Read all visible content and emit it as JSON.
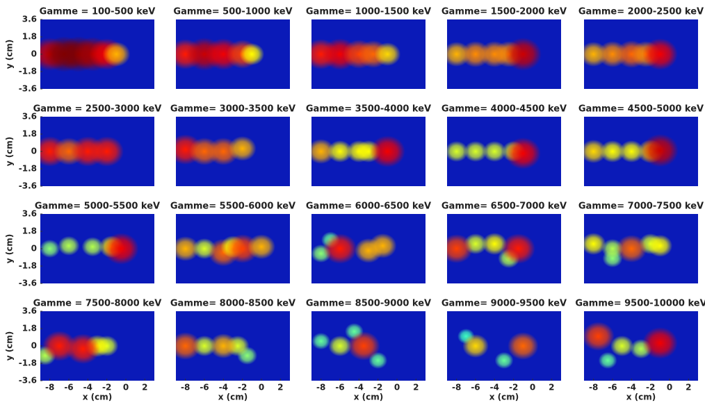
{
  "chart_data": [
    {
      "type": "heatmap",
      "title": "Gamme = 100-500 keV",
      "ylabel": "y (cm)",
      "xlim": [
        -9,
        3
      ],
      "ylim": [
        -3.6,
        3.6
      ],
      "yticks": [
        3.6,
        1.8,
        0,
        -1.8,
        -3.6
      ],
      "x": [
        -8,
        -6.5,
        -5,
        -3.5,
        -2,
        -1
      ],
      "y": [
        0,
        0,
        0,
        0,
        0,
        0
      ],
      "values": [
        0.9,
        1,
        1,
        0.95,
        0.85,
        0.6
      ]
    },
    {
      "type": "heatmap",
      "title": "Gamme= 500-1000 keV",
      "xlim": [
        -9,
        3
      ],
      "ylim": [
        -3.6,
        3.6
      ],
      "x": [
        -8,
        -6,
        -4,
        -2,
        -1
      ],
      "y": [
        0,
        0,
        0,
        0,
        0
      ],
      "values": [
        0.8,
        0.9,
        0.85,
        0.75,
        0.5
      ]
    },
    {
      "type": "heatmap",
      "title": "Gamme= 1000-1500 keV",
      "xlim": [
        -9,
        3
      ],
      "ylim": [
        -3.6,
        3.6
      ],
      "x": [
        -8,
        -6,
        -4,
        -2.5,
        -1
      ],
      "y": [
        0,
        0,
        0,
        0,
        0
      ],
      "values": [
        0.8,
        0.85,
        0.75,
        0.7,
        0.55
      ]
    },
    {
      "type": "heatmap",
      "title": "Gamme= 1500-2000 keV",
      "xlim": [
        -9,
        3
      ],
      "ylim": [
        -3.6,
        3.6
      ],
      "x": [
        -8,
        -6,
        -4,
        -2.5,
        -1
      ],
      "y": [
        0,
        0,
        0,
        0,
        0
      ],
      "values": [
        0.6,
        0.65,
        0.65,
        0.65,
        0.9
      ]
    },
    {
      "type": "heatmap",
      "title": "Gamme= 2000-2500 keV",
      "xlim": [
        -9,
        3
      ],
      "ylim": [
        -3.6,
        3.6
      ],
      "x": [
        -8,
        -6,
        -4,
        -2.5,
        -1
      ],
      "y": [
        0,
        0,
        0,
        0,
        0
      ],
      "values": [
        0.6,
        0.65,
        0.7,
        0.65,
        0.85
      ]
    },
    {
      "type": "heatmap",
      "title": "Gamme = 2500-3000 keV",
      "ylabel": "y (cm)",
      "xlim": [
        -9,
        3
      ],
      "ylim": [
        -3.6,
        3.6
      ],
      "yticks": [
        3.6,
        1.8,
        0,
        -1.8,
        -3.6
      ],
      "x": [
        -8,
        -6,
        -4,
        -2
      ],
      "y": [
        0,
        0,
        0,
        0
      ],
      "values": [
        0.8,
        0.7,
        0.8,
        0.8
      ]
    },
    {
      "type": "heatmap",
      "title": "Gamme= 3000-3500 keV",
      "xlim": [
        -9,
        3
      ],
      "ylim": [
        -3.6,
        3.6
      ],
      "x": [
        -8,
        -6,
        -4,
        -2
      ],
      "y": [
        0.2,
        0,
        0,
        0.3
      ],
      "values": [
        0.8,
        0.7,
        0.7,
        0.6
      ]
    },
    {
      "type": "heatmap",
      "title": "Gamme= 3500-4000 keV",
      "xlim": [
        -9,
        3
      ],
      "ylim": [
        -3.6,
        3.6
      ],
      "x": [
        -8,
        -6,
        -4,
        -3,
        -1
      ],
      "y": [
        0,
        0,
        0,
        0,
        0
      ],
      "values": [
        0.6,
        0.5,
        0.5,
        0.5,
        0.85
      ]
    },
    {
      "type": "heatmap",
      "title": "Gamme= 4000-4500 keV",
      "xlim": [
        -9,
        3
      ],
      "ylim": [
        -3.6,
        3.6
      ],
      "x": [
        -8,
        -6,
        -4,
        -2,
        -1
      ],
      "y": [
        0,
        0,
        0,
        0,
        -0.2
      ],
      "values": [
        0.45,
        0.45,
        0.45,
        0.45,
        0.85
      ]
    },
    {
      "type": "heatmap",
      "title": "Gamme= 4500-5000 keV",
      "xlim": [
        -9,
        3
      ],
      "ylim": [
        -3.6,
        3.6
      ],
      "x": [
        -8,
        -6,
        -4,
        -2,
        -1
      ],
      "y": [
        0,
        0,
        0,
        0,
        0.1
      ],
      "values": [
        0.55,
        0.5,
        0.5,
        0.55,
        0.9
      ]
    },
    {
      "type": "heatmap",
      "title": "Gamme= 5000-5500 keV",
      "ylabel": "y (cm)",
      "xlim": [
        -9,
        3
      ],
      "ylim": [
        -3.6,
        3.6
      ],
      "yticks": [
        3.6,
        1.8,
        0,
        -1.8,
        -3.6
      ],
      "x": [
        -8,
        -6,
        -3.5,
        -1.5,
        -0.5
      ],
      "y": [
        0,
        0.3,
        0.2,
        0.2,
        0
      ],
      "values": [
        0.35,
        0.4,
        0.4,
        0.5,
        0.85
      ]
    },
    {
      "type": "heatmap",
      "title": "Gamme= 5500-6000 keV",
      "xlim": [
        -9,
        3
      ],
      "ylim": [
        -3.6,
        3.6
      ],
      "x": [
        -8,
        -6,
        -4,
        -3,
        -2,
        0
      ],
      "y": [
        0,
        0,
        -0.4,
        0.2,
        0,
        0.2
      ],
      "values": [
        0.6,
        0.45,
        0.7,
        0.5,
        0.75,
        0.6
      ]
    },
    {
      "type": "heatmap",
      "title": "Gamme= 6000-6500 keV",
      "xlim": [
        -9,
        3
      ],
      "ylim": [
        -3.6,
        3.6
      ],
      "x": [
        -7,
        -8,
        -3,
        -1.5,
        -6
      ],
      "y": [
        0.9,
        -0.5,
        -0.2,
        0.3,
        0
      ],
      "values": [
        0.3,
        0.35,
        0.6,
        0.6,
        0.8
      ]
    },
    {
      "type": "heatmap",
      "title": "Gamme= 6500-7000 keV",
      "xlim": [
        -9,
        3
      ],
      "ylim": [
        -3.6,
        3.6
      ],
      "x": [
        -2.5,
        -6,
        -4,
        -8,
        -1.5
      ],
      "y": [
        -1,
        0.5,
        0.5,
        0,
        0
      ],
      "values": [
        0.4,
        0.45,
        0.5,
        0.75,
        0.8
      ]
    },
    {
      "type": "heatmap",
      "title": "Gamme= 7000-7500 keV",
      "xlim": [
        -9,
        3
      ],
      "ylim": [
        -3.6,
        3.6
      ],
      "x": [
        -6,
        -6,
        -2,
        -1,
        -8,
        -4
      ],
      "y": [
        -1,
        0,
        0.5,
        0.3,
        0.5,
        0
      ],
      "values": [
        0.35,
        0.4,
        0.45,
        0.5,
        0.5,
        0.7
      ]
    },
    {
      "type": "heatmap",
      "title": "Gamme = 7500-8000 keV",
      "ylabel": "y (cm)",
      "xlabel": "x (cm)",
      "xlim": [
        -9,
        3
      ],
      "ylim": [
        -3.6,
        3.6
      ],
      "yticks": [
        3.6,
        1.8,
        0,
        -1.8,
        -3.6
      ],
      "xticks": [
        -8,
        -6,
        -4,
        -2,
        0,
        2
      ],
      "x": [
        -8.5,
        -2,
        -3,
        -7,
        -4.5
      ],
      "y": [
        -1,
        0,
        0,
        0,
        -0.3
      ],
      "values": [
        0.4,
        0.45,
        0.5,
        0.8,
        0.8
      ]
    },
    {
      "type": "heatmap",
      "title": "Gamme= 8000-8500 keV",
      "xlabel": "x (cm)",
      "xlim": [
        -9,
        3
      ],
      "ylim": [
        -3.6,
        3.6
      ],
      "xticks": [
        -8,
        -6,
        -4,
        -2,
        0,
        2
      ],
      "x": [
        -1.5,
        -6,
        -2.5,
        -4,
        -8
      ],
      "y": [
        -1,
        0,
        0,
        0,
        0
      ],
      "values": [
        0.35,
        0.45,
        0.45,
        0.6,
        0.7
      ]
    },
    {
      "type": "heatmap",
      "title": "Gamme= 8500-9000 keV",
      "xlabel": "x (cm)",
      "xlim": [
        -9,
        3
      ],
      "ylim": [
        -3.6,
        3.6
      ],
      "xticks": [
        -8,
        -6,
        -4,
        -2,
        0,
        2
      ],
      "x": [
        -8,
        -4.5,
        -2,
        -6,
        -3.5
      ],
      "y": [
        0.5,
        1.5,
        -1.5,
        0,
        0
      ],
      "values": [
        0.3,
        0.3,
        0.3,
        0.45,
        0.75
      ]
    },
    {
      "type": "heatmap",
      "title": "Gamme= 9000-9500 keV",
      "xlabel": "x (cm)",
      "xlim": [
        -9,
        3
      ],
      "ylim": [
        -3.6,
        3.6
      ],
      "xticks": [
        -8,
        -6,
        -4,
        -2,
        0,
        2
      ],
      "x": [
        -7,
        -3,
        -6,
        -1
      ],
      "y": [
        1,
        -1.5,
        0,
        0
      ],
      "values": [
        0.25,
        0.3,
        0.55,
        0.7
      ]
    },
    {
      "type": "heatmap",
      "title": "Gamme= 9500-10000 keV",
      "xlabel": "x (cm)",
      "xlim": [
        -9,
        3
      ],
      "ylim": [
        -3.6,
        3.6
      ],
      "xticks": [
        -8,
        -6,
        -4,
        -2,
        0,
        2
      ],
      "x": [
        -6.5,
        -3,
        -5,
        -7.5,
        -1
      ],
      "y": [
        -1.5,
        -0.3,
        0,
        1,
        0.3
      ],
      "values": [
        0.3,
        0.4,
        0.45,
        0.75,
        0.85
      ]
    }
  ]
}
